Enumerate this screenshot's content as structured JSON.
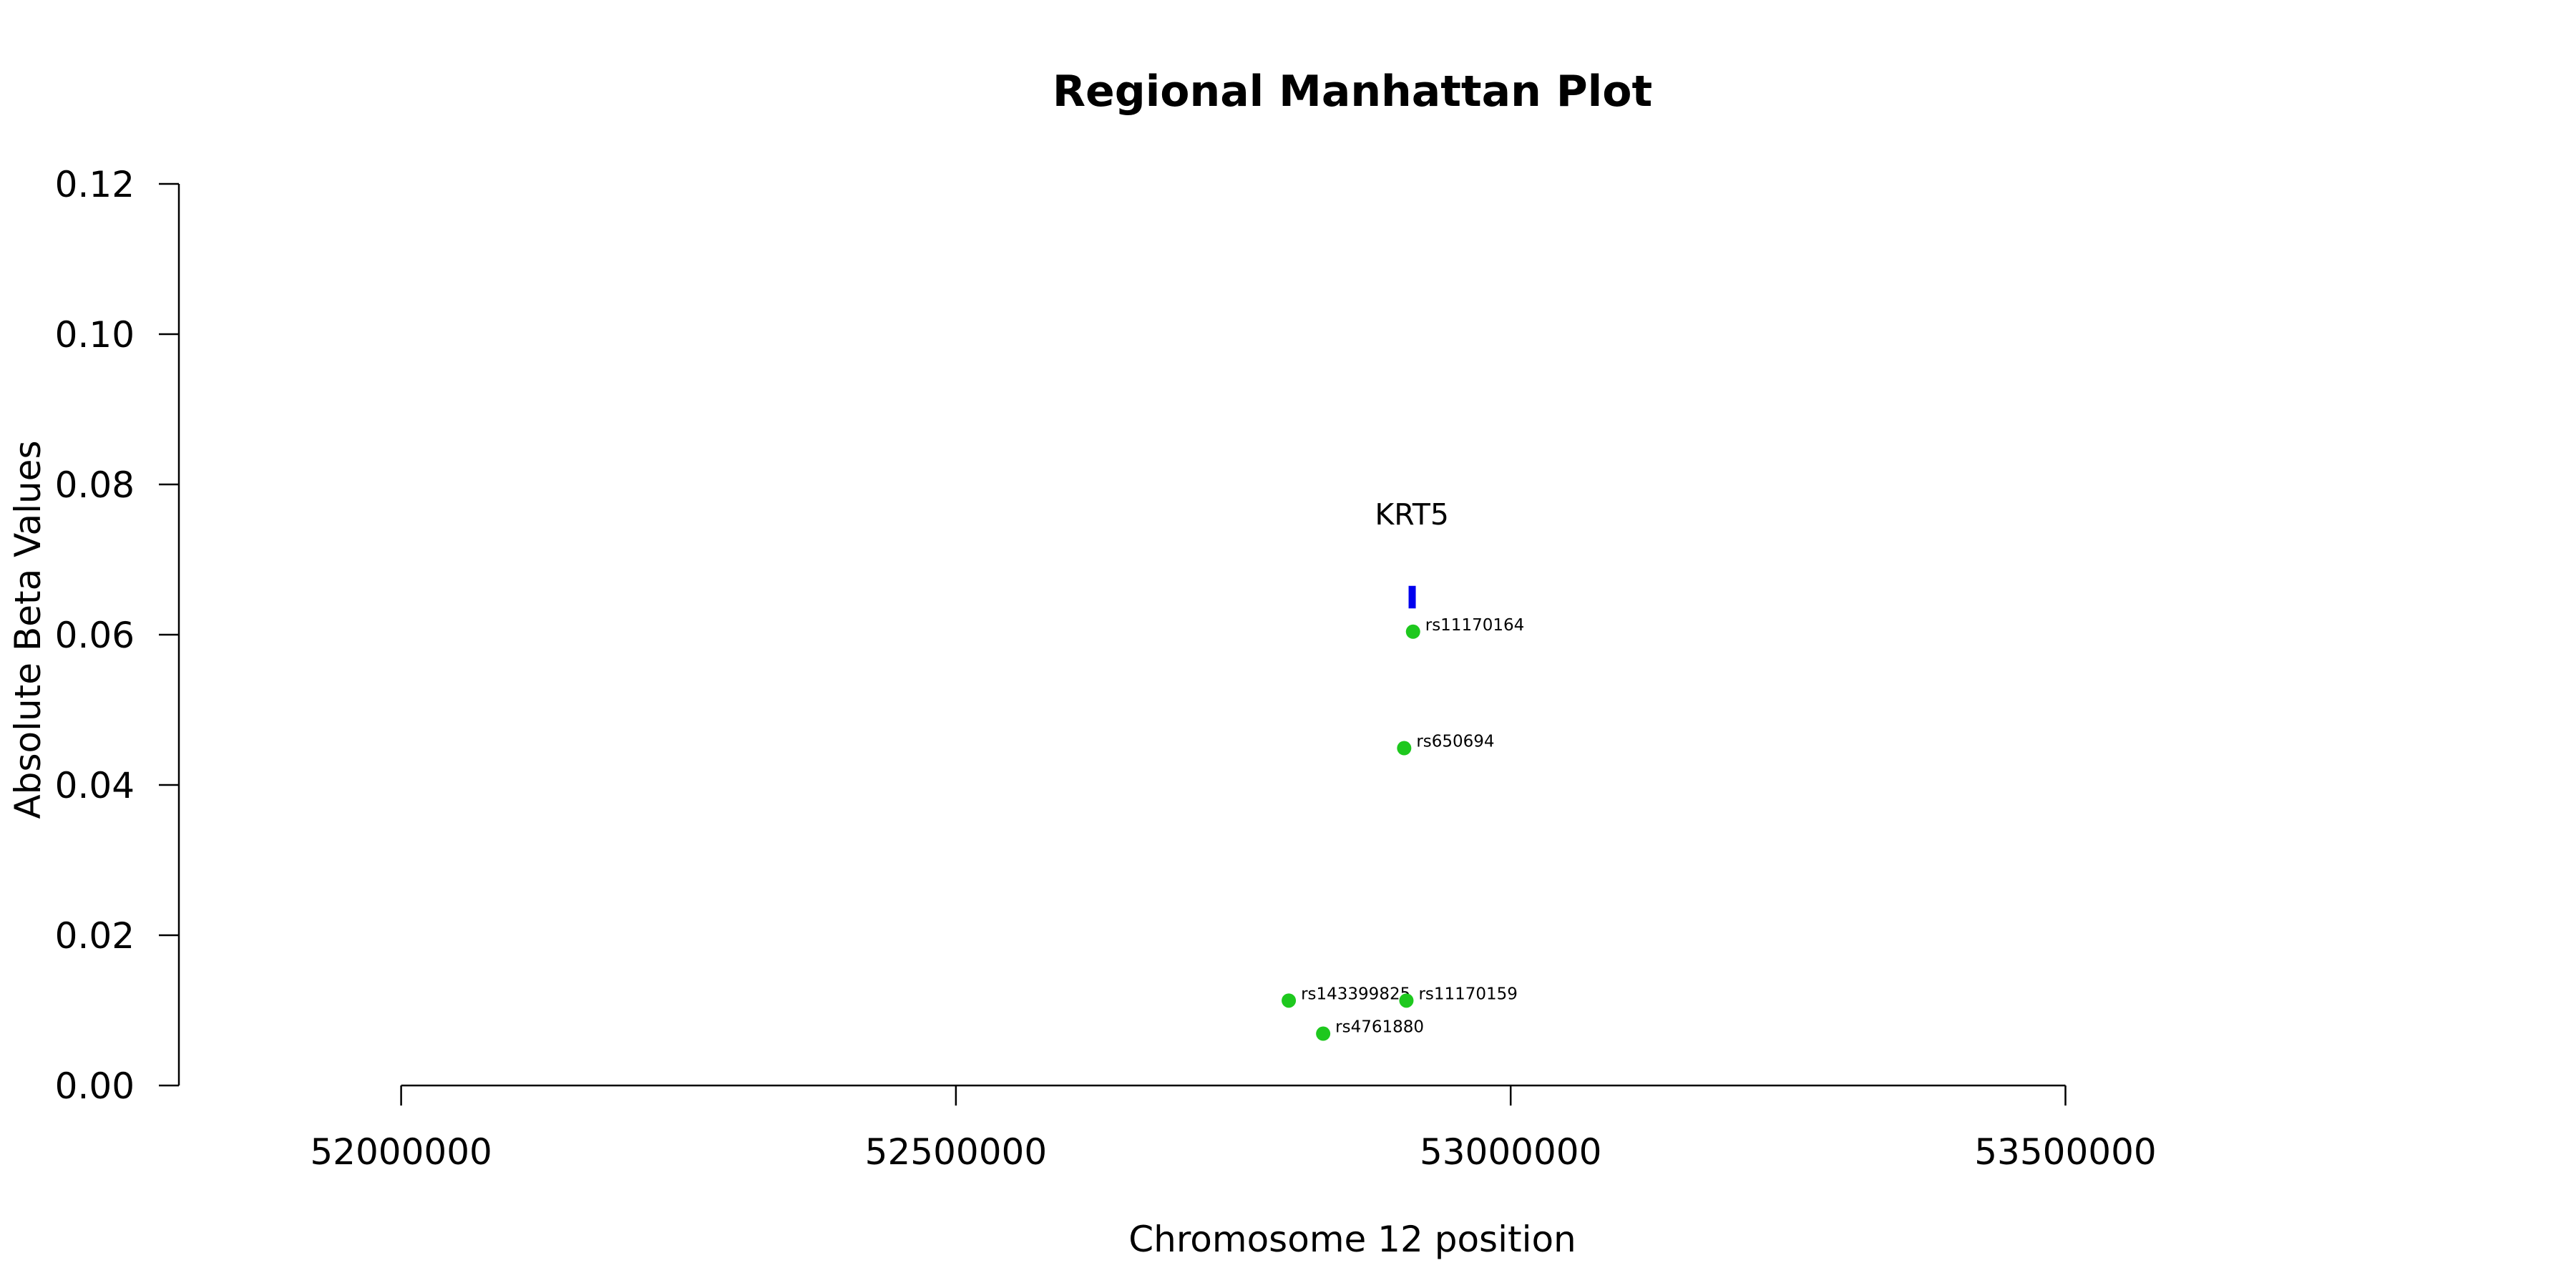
{
  "chart_data": {
    "type": "scatter",
    "title": "Regional Manhattan Plot",
    "xlabel": "Chromosome 12 position",
    "ylabel": "Absolute Beta Values",
    "xlim": [
      51800000,
      53800000
    ],
    "ylim": [
      0,
      0.12
    ],
    "x_ticks": [
      52000000,
      52500000,
      53000000,
      53500000
    ],
    "x_tick_labels": [
      "52000000",
      "52500000",
      "53000000",
      "53500000"
    ],
    "y_ticks": [
      0,
      0.02,
      0.04,
      0.06,
      0.08,
      0.1,
      0.12
    ],
    "y_tick_labels": [
      "0.00",
      "0.02",
      "0.04",
      "0.06",
      "0.08",
      "0.10",
      "0.12"
    ],
    "grid": false,
    "point_color": "#1ec81e",
    "gene_color": "#0000ee",
    "points": [
      {
        "label": "rs11170164",
        "x": 52912000,
        "y": 0.0604
      },
      {
        "label": "rs650694",
        "x": 52904000,
        "y": 0.0449
      },
      {
        "label": "rs143399825",
        "x": 52800000,
        "y": 0.0113
      },
      {
        "label": "rs11170159",
        "x": 52906000,
        "y": 0.0113
      },
      {
        "label": "rs4761880",
        "x": 52831000,
        "y": 0.0069
      }
    ],
    "genes": [
      {
        "name": "KRT5",
        "start": 52908000,
        "end": 52914000,
        "y_low": 0.0635,
        "y_high": 0.0665
      }
    ]
  }
}
